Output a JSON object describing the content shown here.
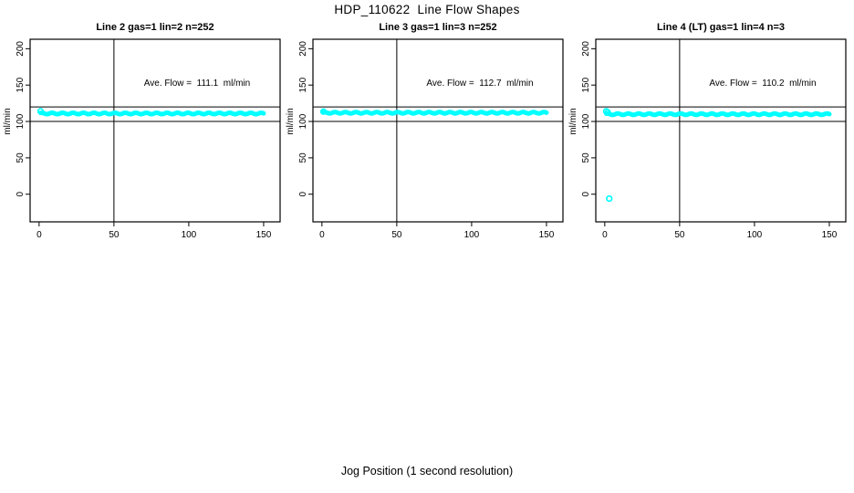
{
  "figure": {
    "title": "HDP_110622  Line Flow Shapes",
    "xlabel": "Jog Position (1 second resolution)"
  },
  "colors": {
    "points": "#00ffff",
    "axis": "#000000",
    "background": "#ffffff"
  },
  "chart_data": [
    {
      "type": "scatter",
      "title": "Line 2 gas=1 lin=2 n=252",
      "gas": 1,
      "lin": 2,
      "n": 252,
      "annotation": "Ave. Flow =  111.1  ml/min",
      "ave_flow": 111.1,
      "flow_units": "ml/min",
      "ylabel": "ml/min",
      "x_ticks": [
        0,
        50,
        100,
        150
      ],
      "y_ticks": [
        0,
        50,
        100,
        150,
        200
      ],
      "xlim": [
        -6,
        161
      ],
      "ylim": [
        -38,
        213
      ],
      "hlines": [
        100,
        120
      ],
      "vlines": [
        50
      ],
      "grid": false,
      "band": {
        "x_start": 1,
        "x_end": 150,
        "y": 111,
        "wiggle": 1
      },
      "ring_points": [
        {
          "x": 1,
          "y": 114
        }
      ]
    },
    {
      "type": "scatter",
      "title": "Line 3 gas=1 lin=3 n=252",
      "gas": 1,
      "lin": 3,
      "n": 252,
      "annotation": "Ave. Flow =  112.7  ml/min",
      "ave_flow": 112.7,
      "flow_units": "ml/min",
      "ylabel": "ml/min",
      "x_ticks": [
        0,
        50,
        100,
        150
      ],
      "y_ticks": [
        0,
        50,
        100,
        150,
        200
      ],
      "xlim": [
        -6,
        161
      ],
      "ylim": [
        -38,
        213
      ],
      "hlines": [
        100,
        120
      ],
      "vlines": [
        50
      ],
      "grid": false,
      "band": {
        "x_start": 1,
        "x_end": 150,
        "y": 112,
        "wiggle": 1
      },
      "ring_points": [
        {
          "x": 1,
          "y": 113.5
        }
      ]
    },
    {
      "type": "scatter",
      "title": "Line 4 (LT) gas=1 lin=4 n=3",
      "gas": 1,
      "lin": 4,
      "n": 3,
      "annotation": "Ave. Flow =  110.2  ml/min",
      "ave_flow": 110.2,
      "flow_units": "ml/min",
      "ylabel": "ml/min",
      "x_ticks": [
        0,
        50,
        100,
        150
      ],
      "y_ticks": [
        0,
        50,
        100,
        150,
        200
      ],
      "xlim": [
        -6,
        161
      ],
      "ylim": [
        -38,
        213
      ],
      "hlines": [
        100,
        120
      ],
      "vlines": [
        50
      ],
      "grid": false,
      "band": {
        "x_start": 1,
        "x_end": 150,
        "y": 110,
        "wiggle": 1
      },
      "ring_points": [
        {
          "x": 1,
          "y": 114
        },
        {
          "x": 2,
          "y": 112.5
        },
        {
          "x": 3,
          "y": -6
        }
      ]
    }
  ]
}
